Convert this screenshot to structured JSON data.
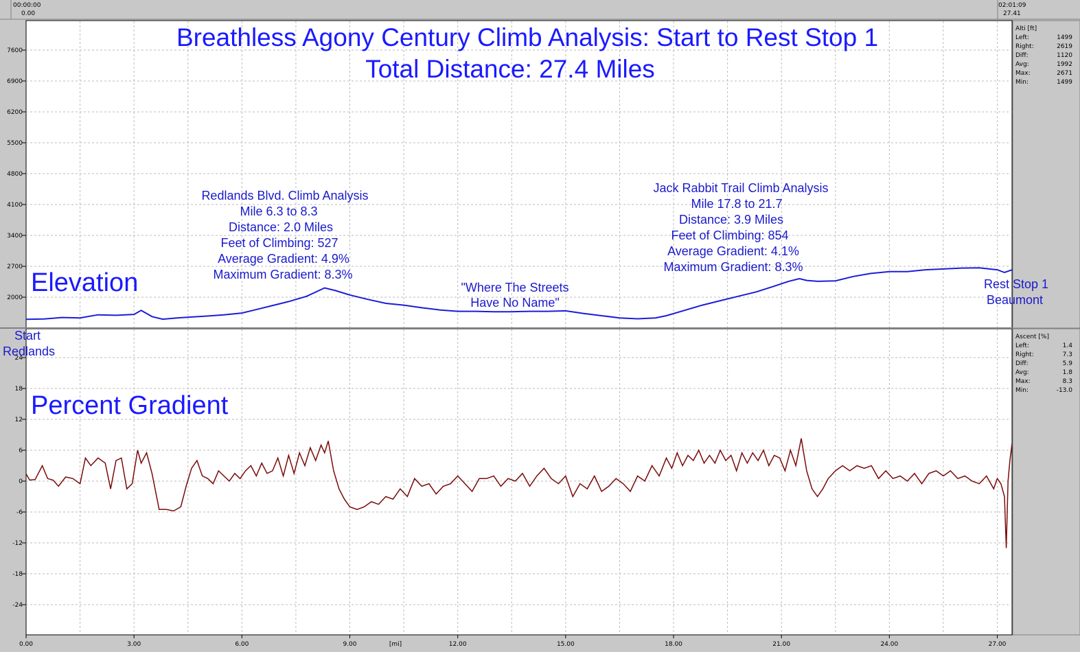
{
  "header": {
    "left_time": "00:00:00",
    "left_dist": "0.00",
    "right_time": "02:01:09",
    "right_dist": "27.41"
  },
  "title_lines": [
    "Breathless Agony Century Climb Analysis: Start to Rest Stop 1",
    "Total Distance: 27.4 Miles"
  ],
  "colors": {
    "background": "#c8c8c8",
    "plot_bg": "#ffffff",
    "elevation_line": "#1c1cd8",
    "gradient_line": "#7a0a0a",
    "title": "#1a1aff",
    "annotation": "#1a1acc"
  },
  "x_axis": {
    "unit_label": "[mi]",
    "ticks": [
      "0.00",
      "3.00",
      "6.00",
      "9.00",
      "12.00",
      "15.00",
      "18.00",
      "21.00",
      "24.00",
      "27.00"
    ]
  },
  "elevation_panel": {
    "label": "Elevation",
    "y_ticks": [
      "7600",
      "6900",
      "6200",
      "5500",
      "4800",
      "4100",
      "3400",
      "2700",
      "2000"
    ],
    "stats": {
      "header": "Alti [ft]",
      "rows": [
        {
          "label": "Left:",
          "value": "1499"
        },
        {
          "label": "Right:",
          "value": "2619"
        },
        {
          "label": "Diff:",
          "value": "1120"
        },
        {
          "label": "Avg:",
          "value": "1992"
        },
        {
          "label": "Max:",
          "value": "2671"
        },
        {
          "label": "Min:",
          "value": "1499"
        }
      ]
    },
    "annotations": {
      "redlands": [
        "Redlands Blvd. Climb Analysis",
        "Mile 6.3 to 8.3",
        "Distance: 2.0 Miles",
        "Feet of Climbing: 527",
        "Average Gradient: 4.9%",
        "Maximum Gradient: 8.3%"
      ],
      "streets": [
        "\"Where The Streets",
        "Have No Name\""
      ],
      "jackrabbit": [
        "Jack Rabbit Trail Climb Analysis",
        "Mile 17.8 to 21.7",
        "Distance: 3.9 Miles",
        "Feet of Climbing: 854",
        "Average Gradient: 4.1%",
        "Maximum Gradient: 8.3%"
      ],
      "reststop": [
        "Rest Stop 1",
        "Beaumont"
      ]
    }
  },
  "gradient_panel": {
    "label": "Percent Gradient",
    "y_ticks": [
      "24",
      "18",
      "12",
      "6",
      "0",
      "-6",
      "-12",
      "-18",
      "-24"
    ],
    "stats": {
      "header": "Ascent [%]",
      "rows": [
        {
          "label": "Left:",
          "value": "1.4"
        },
        {
          "label": "Right:",
          "value": "7.3"
        },
        {
          "label": "Diff:",
          "value": "5.9"
        },
        {
          "label": "Avg:",
          "value": "1.8"
        },
        {
          "label": "Max:",
          "value": "8.3"
        },
        {
          "label": "Min:",
          "value": "-13.0"
        }
      ]
    },
    "annotations": {
      "start": [
        "Start",
        "Redlands"
      ]
    }
  },
  "chart_data": [
    {
      "type": "line",
      "title": "Breathless Agony Century Climb Analysis: Start to Rest Stop 1",
      "subtitle": "Total Distance: 27.4 Miles",
      "xlabel": "[mi]",
      "ylabel": "Alti [ft]",
      "xlim": [
        0,
        27.41
      ],
      "ylim": [
        1400,
        8200
      ],
      "grid": true,
      "x": [
        0,
        0.5,
        1.0,
        1.5,
        2.0,
        2.5,
        3.0,
        3.2,
        3.5,
        3.8,
        4.2,
        4.6,
        5.0,
        5.5,
        6.0,
        6.3,
        6.8,
        7.3,
        7.8,
        8.3,
        8.6,
        9.0,
        9.5,
        10.0,
        10.5,
        11.0,
        11.5,
        12.0,
        12.5,
        13.0,
        13.5,
        14.0,
        14.5,
        15.0,
        15.5,
        16.0,
        16.5,
        17.0,
        17.5,
        17.8,
        18.3,
        18.8,
        19.3,
        19.8,
        20.3,
        20.8,
        21.2,
        21.5,
        21.7,
        22.0,
        22.5,
        23.0,
        23.5,
        24.0,
        24.5,
        25.0,
        25.5,
        26.0,
        26.5,
        27.0,
        27.2,
        27.41
      ],
      "y": [
        1499,
        1505,
        1540,
        1530,
        1600,
        1590,
        1610,
        1700,
        1560,
        1500,
        1530,
        1550,
        1570,
        1600,
        1640,
        1700,
        1800,
        1900,
        2020,
        2210,
        2150,
        2050,
        1950,
        1860,
        1820,
        1760,
        1710,
        1680,
        1680,
        1670,
        1670,
        1680,
        1680,
        1690,
        1630,
        1580,
        1530,
        1510,
        1530,
        1580,
        1700,
        1820,
        1920,
        2020,
        2120,
        2250,
        2360,
        2420,
        2380,
        2360,
        2370,
        2470,
        2540,
        2580,
        2580,
        2620,
        2640,
        2660,
        2665,
        2620,
        2560,
        2619
      ],
      "series": [
        {
          "name": "Alti [ft]"
        }
      ]
    },
    {
      "type": "line",
      "xlabel": "[mi]",
      "ylabel": "Ascent [%]",
      "xlim": [
        0,
        27.41
      ],
      "ylim": [
        -30,
        30
      ],
      "grid": true,
      "x": [
        0,
        0.1,
        0.25,
        0.45,
        0.6,
        0.75,
        0.9,
        1.1,
        1.3,
        1.5,
        1.65,
        1.8,
        2.0,
        2.2,
        2.35,
        2.5,
        2.65,
        2.8,
        2.95,
        3.1,
        3.2,
        3.35,
        3.5,
        3.7,
        3.9,
        4.1,
        4.3,
        4.45,
        4.6,
        4.75,
        4.9,
        5.05,
        5.2,
        5.35,
        5.5,
        5.65,
        5.8,
        5.95,
        6.1,
        6.25,
        6.4,
        6.55,
        6.7,
        6.85,
        7.0,
        7.15,
        7.3,
        7.45,
        7.6,
        7.75,
        7.9,
        8.05,
        8.2,
        8.3,
        8.4,
        8.55,
        8.7,
        8.85,
        9.0,
        9.2,
        9.4,
        9.6,
        9.8,
        10.0,
        10.2,
        10.4,
        10.6,
        10.8,
        11.0,
        11.2,
        11.4,
        11.6,
        11.8,
        12.0,
        12.2,
        12.4,
        12.6,
        12.8,
        13.0,
        13.2,
        13.4,
        13.6,
        13.8,
        14.0,
        14.2,
        14.4,
        14.6,
        14.8,
        15.0,
        15.2,
        15.4,
        15.6,
        15.8,
        16.0,
        16.2,
        16.4,
        16.6,
        16.8,
        17.0,
        17.2,
        17.4,
        17.6,
        17.8,
        17.95,
        18.1,
        18.25,
        18.4,
        18.55,
        18.7,
        18.85,
        19.0,
        19.15,
        19.3,
        19.45,
        19.6,
        19.75,
        19.9,
        20.05,
        20.2,
        20.35,
        20.5,
        20.65,
        20.8,
        20.95,
        21.1,
        21.25,
        21.4,
        21.55,
        21.7,
        21.85,
        22.0,
        22.15,
        22.3,
        22.5,
        22.7,
        22.9,
        23.1,
        23.3,
        23.5,
        23.7,
        23.9,
        24.1,
        24.3,
        24.5,
        24.7,
        24.9,
        25.1,
        25.3,
        25.5,
        25.7,
        25.9,
        26.1,
        26.3,
        26.5,
        26.7,
        26.9,
        27.0,
        27.1,
        27.2,
        27.25,
        27.3,
        27.35,
        27.41
      ],
      "y": [
        1.4,
        0.2,
        0.3,
        3.0,
        0.5,
        0.2,
        -1.0,
        0.8,
        0.5,
        -0.5,
        4.5,
        3.0,
        4.5,
        3.5,
        -1.5,
        4.0,
        4.5,
        -1.5,
        -0.5,
        6.0,
        3.5,
        5.5,
        1.5,
        -5.5,
        -5.5,
        -5.8,
        -5.0,
        -1.0,
        2.5,
        4.0,
        1.0,
        0.5,
        -0.5,
        2.0,
        1.0,
        0.0,
        1.5,
        0.5,
        2.0,
        3.0,
        1.0,
        3.5,
        1.5,
        2.0,
        4.5,
        1.0,
        5.0,
        1.5,
        5.5,
        3.0,
        6.5,
        4.0,
        7.0,
        5.5,
        7.8,
        2.0,
        -1.5,
        -3.5,
        -5.0,
        -5.5,
        -5.0,
        -4.0,
        -4.5,
        -3.0,
        -3.5,
        -1.5,
        -3.0,
        0.5,
        -1.0,
        -0.5,
        -2.5,
        -1.0,
        -0.5,
        1.0,
        -0.5,
        -2.0,
        0.5,
        0.5,
        1.0,
        -1.0,
        0.5,
        0.0,
        1.5,
        -1.0,
        1.0,
        2.5,
        0.5,
        -0.5,
        1.0,
        -3.0,
        -0.5,
        -1.5,
        1.0,
        -2.0,
        -1.0,
        0.5,
        -0.5,
        -2.0,
        1.0,
        0.0,
        3.0,
        1.0,
        4.5,
        2.5,
        5.5,
        3.0,
        5.0,
        4.0,
        6.0,
        3.5,
        5.0,
        3.5,
        6.0,
        4.0,
        5.0,
        2.0,
        5.5,
        3.5,
        5.5,
        4.0,
        6.0,
        3.0,
        5.0,
        4.5,
        2.0,
        6.0,
        3.0,
        8.3,
        2.0,
        -1.5,
        -3.0,
        -1.5,
        0.5,
        2.0,
        3.0,
        2.0,
        3.0,
        2.5,
        3.0,
        0.5,
        2.0,
        0.5,
        1.0,
        0.0,
        1.5,
        -0.5,
        1.5,
        2.0,
        1.0,
        2.0,
        0.5,
        1.0,
        0.0,
        -0.5,
        1.0,
        -1.5,
        0.5,
        -0.5,
        -3.0,
        -13.0,
        0.0,
        4.0,
        7.3
      ]
    }
  ]
}
